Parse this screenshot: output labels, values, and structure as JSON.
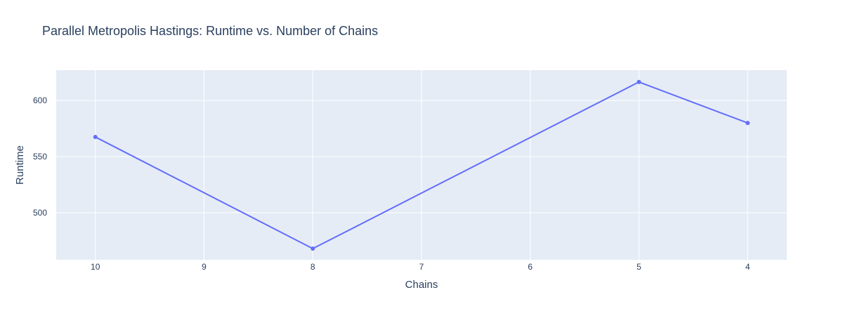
{
  "chart_data": {
    "type": "line",
    "title": "Parallel Metropolis Hastings: Runtime vs. Number of Chains",
    "xlabel": "Chains",
    "ylabel": "Runtime",
    "x_reversed": true,
    "xlim": [
      10.36,
      3.64
    ],
    "ylim": [
      458,
      627
    ],
    "xticks": [
      10,
      9,
      8,
      7,
      6,
      5,
      4
    ],
    "yticks": [
      500,
      550,
      600
    ],
    "grid": true,
    "legend": "none",
    "series": [
      {
        "x": [
          10,
          8,
          5,
          4
        ],
        "values": [
          567.5,
          468,
          616.5,
          580
        ],
        "mode": "lines+markers"
      }
    ]
  },
  "colors": {
    "plot_background": "#e5ecf6",
    "grid": "#ffffff",
    "line": "#636efa",
    "text": "#2a3f5f"
  }
}
